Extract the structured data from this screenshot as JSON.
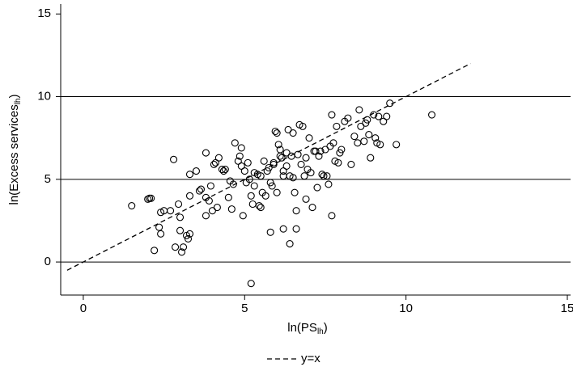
{
  "chart_data": {
    "type": "scatter",
    "xlabel": [
      "ln(PS",
      "lh",
      ")"
    ],
    "ylabel": [
      "ln(Excess services",
      "lh",
      ")"
    ],
    "xlim": [
      -0.7,
      15.1
    ],
    "ylim": [
      -2,
      15.6
    ],
    "xticks": [
      0,
      5,
      10,
      15
    ],
    "yticks": [
      0,
      5,
      10,
      15
    ],
    "ygrid": [
      0,
      5,
      10
    ],
    "legend": "bottom",
    "series": [
      {
        "name": "y=x",
        "type": "line",
        "color": "#000",
        "dash": true,
        "x": [
          -0.5,
          12
        ],
        "values": [
          -0.5,
          12
        ]
      },
      {
        "name": null,
        "type": "scatter",
        "color": "#000",
        "x": [
          1.5,
          2.0,
          2.05,
          2.1,
          2.2,
          2.4,
          2.35,
          2.4,
          2.5,
          2.7,
          2.8,
          2.85,
          2.95,
          3.0,
          3.0,
          3.05,
          3.1,
          3.2,
          3.25,
          3.3,
          3.3,
          3.3,
          3.5,
          3.6,
          3.65,
          3.8,
          3.8,
          3.8,
          3.9,
          3.95,
          4.0,
          4.05,
          4.1,
          4.15,
          4.2,
          4.3,
          4.35,
          4.4,
          4.5,
          4.55,
          4.6,
          4.65,
          4.7,
          4.8,
          4.85,
          4.9,
          4.9,
          4.95,
          5.0,
          5.05,
          5.1,
          5.15,
          5.2,
          5.25,
          5.3,
          5.3,
          5.4,
          5.45,
          5.5,
          5.5,
          5.55,
          5.6,
          5.65,
          5.7,
          5.75,
          5.8,
          5.85,
          5.9,
          5.9,
          5.95,
          6.0,
          6.0,
          6.05,
          6.1,
          6.1,
          6.15,
          6.2,
          6.2,
          5.8,
          5.2,
          6.3,
          6.3,
          6.35,
          6.4,
          6.45,
          6.5,
          6.5,
          6.55,
          6.6,
          6.6,
          6.65,
          6.7,
          6.75,
          6.8,
          6.85,
          6.9,
          6.9,
          6.95,
          7.0,
          7.05,
          7.1,
          7.15,
          7.2,
          7.25,
          7.3,
          7.35,
          7.4,
          7.45,
          7.5,
          7.55,
          7.6,
          7.65,
          7.7,
          7.75,
          7.8,
          7.85,
          7.9,
          7.95,
          8.0,
          8.1,
          8.2,
          8.3,
          8.4,
          8.5,
          8.55,
          8.6,
          8.7,
          8.75,
          8.8,
          8.85,
          8.9,
          9.0,
          9.05,
          9.1,
          9.15,
          9.2,
          9.3,
          9.4,
          9.5,
          9.7,
          10.8,
          7.7,
          6.4,
          6.2
        ],
        "values": [
          3.4,
          3.8,
          3.85,
          3.85,
          0.7,
          3.0,
          2.1,
          1.7,
          3.1,
          3.1,
          6.2,
          0.9,
          3.5,
          2.7,
          1.9,
          0.6,
          0.9,
          1.6,
          1.4,
          1.7,
          5.3,
          4.0,
          5.5,
          4.3,
          4.4,
          6.6,
          3.9,
          2.8,
          3.7,
          4.6,
          3.1,
          5.9,
          6.0,
          3.3,
          6.3,
          5.6,
          5.5,
          5.6,
          3.9,
          4.9,
          3.2,
          4.7,
          7.2,
          6.1,
          6.4,
          5.8,
          6.9,
          2.8,
          5.5,
          4.8,
          6.0,
          5.0,
          4.0,
          3.5,
          5.4,
          4.6,
          5.3,
          3.4,
          3.3,
          5.2,
          4.2,
          6.1,
          4.0,
          5.5,
          5.7,
          4.8,
          4.6,
          6.0,
          5.9,
          7.9,
          7.8,
          4.2,
          7.1,
          6.4,
          6.8,
          6.3,
          5.5,
          5.2,
          1.8,
          -1.3,
          6.6,
          5.8,
          8.0,
          5.2,
          6.4,
          7.8,
          5.1,
          4.2,
          3.1,
          2.0,
          6.5,
          8.3,
          5.9,
          8.2,
          5.2,
          3.8,
          6.3,
          5.6,
          7.5,
          5.4,
          3.3,
          6.7,
          6.7,
          4.5,
          6.4,
          6.7,
          5.3,
          5.2,
          6.8,
          5.2,
          4.7,
          7.0,
          8.9,
          7.2,
          6.1,
          8.2,
          6.0,
          6.6,
          6.8,
          8.5,
          8.7,
          5.9,
          7.6,
          7.2,
          9.2,
          8.2,
          7.3,
          8.4,
          8.6,
          7.7,
          6.3,
          8.9,
          7.5,
          7.2,
          8.8,
          7.1,
          8.5,
          8.8,
          9.6,
          7.1,
          8.9,
          2.8,
          1.1,
          2.0
        ]
      }
    ]
  }
}
